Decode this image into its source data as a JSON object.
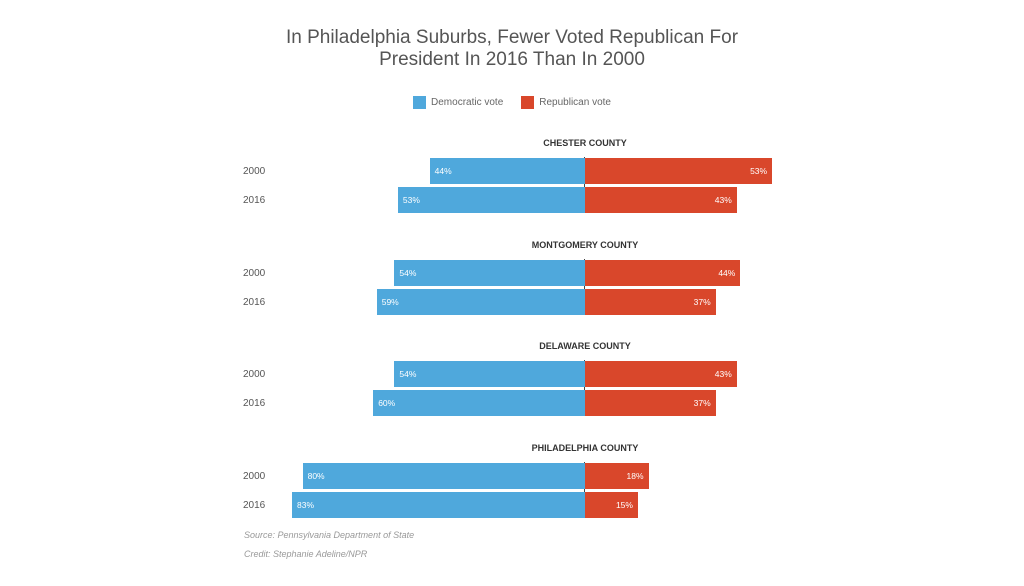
{
  "chart_data": {
    "type": "bar",
    "orientation": "horizontal-diverging",
    "title_lines": [
      "In Philadelphia Suburbs, Fewer Voted Republican For",
      "President In 2016 Than In 2000"
    ],
    "legend": [
      "Democratic vote",
      "Republican vote"
    ],
    "legend_placement": "top",
    "colors": {
      "democratic": "#4fa8dc",
      "republican": "#d9472b"
    },
    "groups": [
      {
        "name": "CHESTER COUNTY",
        "rows": [
          {
            "year": "2000",
            "dem": 44,
            "rep": 53
          },
          {
            "year": "2016",
            "dem": 53,
            "rep": 43
          }
        ]
      },
      {
        "name": "MONTGOMERY COUNTY",
        "rows": [
          {
            "year": "2000",
            "dem": 54,
            "rep": 44
          },
          {
            "year": "2016",
            "dem": 59,
            "rep": 37
          }
        ]
      },
      {
        "name": "DELAWARE COUNTY",
        "rows": [
          {
            "year": "2000",
            "dem": 54,
            "rep": 43
          },
          {
            "year": "2016",
            "dem": 60,
            "rep": 37
          }
        ]
      },
      {
        "name": "PHILADELPHIA COUNTY",
        "rows": [
          {
            "year": "2000",
            "dem": 80,
            "rep": 18
          },
          {
            "year": "2016",
            "dem": 83,
            "rep": 15
          }
        ]
      }
    ],
    "grid": false
  },
  "source": "Source: Pennsylvania Department of State",
  "credit": "Credit: Stephanie Adeline/NPR"
}
